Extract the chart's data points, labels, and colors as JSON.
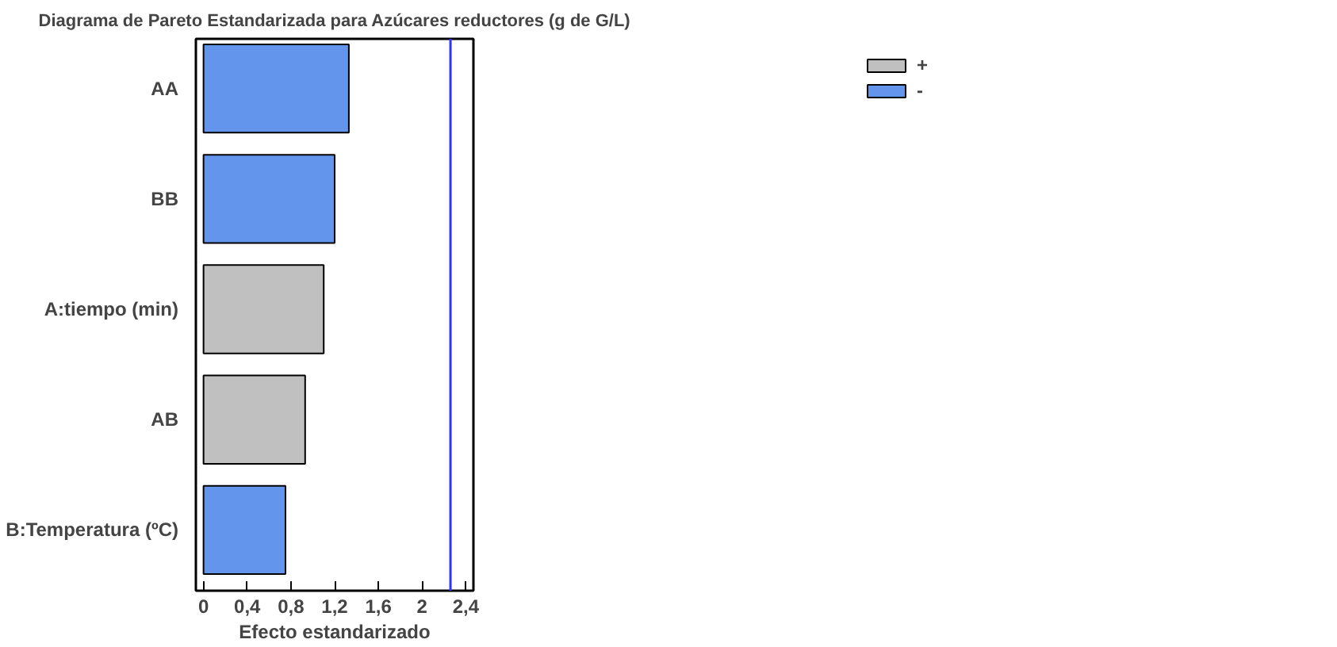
{
  "chart_data": {
    "type": "bar",
    "orientation": "horizontal",
    "title": "Diagrama de Pareto Estandarizada para Azúcares reductores (g de G/L)",
    "xlabel": "Efecto estandarizado",
    "categories": [
      "AA",
      "BB",
      "A:tiempo (min)",
      "AB",
      "B:Temperatura (ºC)"
    ],
    "series": [
      {
        "name": "+",
        "color": "#c0c0c0",
        "values": [
          null,
          null,
          1.1,
          0.93,
          null
        ]
      },
      {
        "name": "-",
        "color": "#6495ed",
        "values": [
          1.33,
          1.2,
          null,
          null,
          0.75
        ]
      }
    ],
    "xlim": [
      -0.07,
      2.47
    ],
    "xticks": [
      {
        "value": 0,
        "label": "0"
      },
      {
        "value": 0.4,
        "label": "0,4"
      },
      {
        "value": 0.8,
        "label": "0,8"
      },
      {
        "value": 1.2,
        "label": "1,2"
      },
      {
        "value": 1.6,
        "label": "1,6"
      },
      {
        "value": 2,
        "label": "2"
      },
      {
        "value": 2.4,
        "label": "2,4"
      }
    ],
    "ref_lines": [
      {
        "axis": "x",
        "value": 2.26,
        "color": "#3333ff"
      }
    ],
    "grid": false,
    "legend": "top right"
  }
}
